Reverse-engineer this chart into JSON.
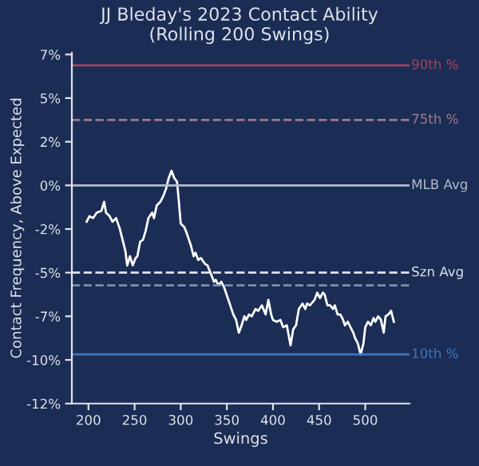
{
  "chart_data": {
    "type": "line",
    "title": "JJ Bleday's 2023 Contact Ability\n(Rolling 200 Swings)",
    "xlabel": "Swings",
    "ylabel": "Contact Frequency, Above Expected",
    "xlim": [
      182,
      548
    ],
    "xticks": [
      200,
      250,
      300,
      350,
      400,
      450,
      500
    ],
    "ylim": [
      -12,
      7.3
    ],
    "yticks": [
      {
        "value": -12,
        "label": "-12%"
      },
      {
        "value": -9.6,
        "label": "-10%"
      },
      {
        "value": -7.2,
        "label": "-7%"
      },
      {
        "value": -4.8,
        "label": "-5%"
      },
      {
        "value": -2.4,
        "label": "-2%"
      },
      {
        "value": 0,
        "label": "0%"
      },
      {
        "value": 2.4,
        "label": "2%"
      },
      {
        "value": 4.8,
        "label": "5%"
      },
      {
        "value": 7.2,
        "label": "7%"
      }
    ],
    "grid": false,
    "legend": false,
    "marker": "none",
    "line_style": "solid",
    "series": [
      {
        "color": "#ffffff",
        "x": [
          198,
          201,
          205,
          209,
          214,
          217,
          219,
          223,
          226,
          230,
          234,
          237,
          240,
          242,
          245,
          248,
          251,
          253,
          256,
          259,
          262,
          265,
          269,
          271,
          274,
          278,
          281,
          284,
          287,
          290,
          293,
          296,
          298,
          300,
          304,
          307,
          311,
          314,
          316,
          319,
          322,
          326,
          329,
          333,
          336,
          338,
          341,
          344,
          347,
          349,
          353,
          357,
          360,
          363,
          366,
          369,
          371,
          374,
          377,
          381,
          384,
          388,
          392,
          395,
          398,
          400,
          404,
          408,
          411,
          415,
          419,
          422,
          425,
          428,
          432,
          435,
          437,
          440,
          445,
          448,
          451,
          454,
          456,
          459,
          462,
          465,
          467,
          470,
          473,
          476,
          478,
          481,
          484,
          487,
          489,
          492,
          495,
          498,
          500,
          503,
          506,
          509,
          511,
          514,
          517,
          520,
          522,
          525,
          528,
          531
        ],
        "values": [
          -2.0,
          -1.7,
          -1.8,
          -1.5,
          -1.4,
          -0.9,
          -1.5,
          -1.7,
          -2.0,
          -1.8,
          -2.4,
          -3.0,
          -3.6,
          -4.4,
          -3.9,
          -4.4,
          -4.0,
          -3.9,
          -3.1,
          -3.0,
          -2.5,
          -1.8,
          -1.5,
          -1.8,
          -1.1,
          -0.9,
          -0.6,
          -0.2,
          0.4,
          0.8,
          0.4,
          0.2,
          -0.9,
          -2.1,
          -2.3,
          -2.7,
          -3.3,
          -3.9,
          -3.7,
          -4.1,
          -4.0,
          -4.3,
          -4.4,
          -4.9,
          -5.3,
          -5.2,
          -5.5,
          -5.3,
          -5.6,
          -5.9,
          -6.5,
          -7.1,
          -7.4,
          -8.1,
          -7.7,
          -7.2,
          -7.4,
          -7.1,
          -7.2,
          -6.8,
          -6.9,
          -6.6,
          -7.1,
          -6.3,
          -7.1,
          -7.4,
          -7.5,
          -7.4,
          -7.8,
          -7.7,
          -8.8,
          -7.9,
          -7.7,
          -6.8,
          -6.5,
          -6.8,
          -6.5,
          -6.6,
          -6.3,
          -5.9,
          -6.2,
          -5.9,
          -6.0,
          -6.6,
          -6.6,
          -6.8,
          -6.6,
          -7.1,
          -7.1,
          -7.4,
          -7.7,
          -7.5,
          -7.8,
          -8.1,
          -8.4,
          -8.7,
          -9.3,
          -8.7,
          -7.8,
          -7.5,
          -7.7,
          -7.3,
          -7.5,
          -7.2,
          -7.4,
          -8.1,
          -7.2,
          -7.1,
          -6.9,
          -7.5
        ]
      }
    ],
    "ref_lines": [
      {
        "axis": "y",
        "value": 6.6,
        "label": "90th %",
        "color": "#a3455e",
        "line_style": "solid"
      },
      {
        "axis": "y",
        "value": 3.6,
        "label": "75th %",
        "color": "#a07890",
        "line_style": "dashed"
      },
      {
        "axis": "y",
        "value": 0,
        "label": "MLB Avg",
        "color": "#b4bccc",
        "line_style": "solid"
      },
      {
        "axis": "y",
        "value": -4.8,
        "label": "Szn Avg",
        "color": "#dfe3ea",
        "line_style": "dashed"
      },
      {
        "axis": "y",
        "value": -5.5,
        "color": "#7f8fb3",
        "line_style": "dashed"
      },
      {
        "axis": "y",
        "value": -9.3,
        "label": "10th %",
        "color": "#3f76bd",
        "line_style": "solid"
      }
    ]
  }
}
